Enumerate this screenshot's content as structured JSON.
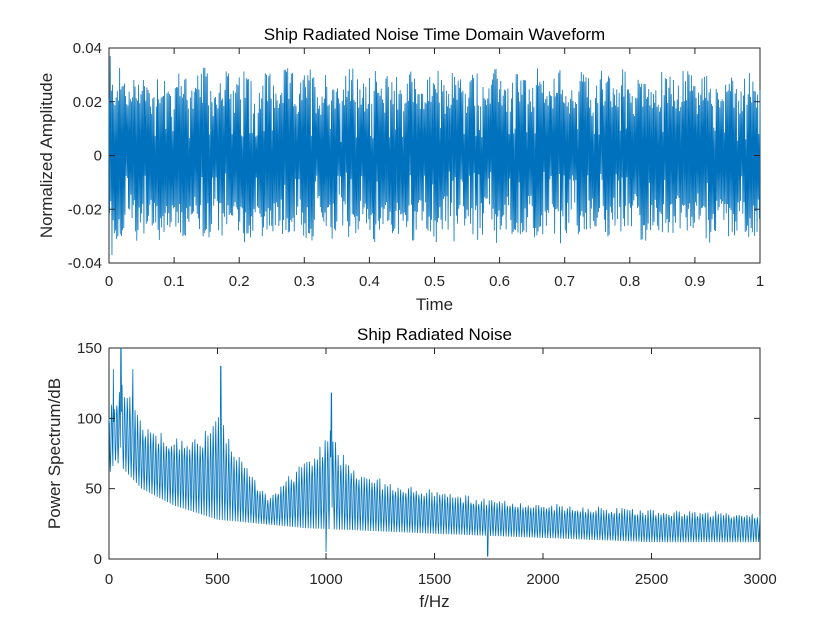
{
  "colors": {
    "line": "#0072BD",
    "axis": "#262626",
    "background": "#ffffff"
  },
  "chart_data": [
    {
      "type": "line",
      "title": "Ship Radiated Noise Time Domain Waveform",
      "xlabel": "Time",
      "ylabel": "Normalized Amplitude",
      "xlim": [
        0,
        1
      ],
      "ylim": [
        -0.04,
        0.04
      ],
      "xticks": [
        "0",
        "0.1",
        "0.2",
        "0.3",
        "0.4",
        "0.5",
        "0.6",
        "0.7",
        "0.8",
        "0.9",
        "1"
      ],
      "yticks": [
        "-0.04",
        "-0.02",
        "0",
        "0.02",
        "0.04"
      ],
      "signal": {
        "kind": "oscillation",
        "points": 1100,
        "envelope_peak": 0.033,
        "envelope_typical": 0.025,
        "max_value": 0.037,
        "min_value": -0.037
      }
    },
    {
      "type": "line",
      "title": "Ship Radiated Noise",
      "xlabel": "f/Hz",
      "ylabel": "Power Spectrum/dB",
      "xlim": [
        0,
        3000
      ],
      "ylim": [
        0,
        150
      ],
      "xticks": [
        "0",
        "500",
        "1000",
        "1500",
        "2000",
        "2500",
        "3000"
      ],
      "yticks": [
        "0",
        "50",
        "100",
        "150"
      ],
      "upper_envelope": [
        [
          0,
          110
        ],
        [
          30,
          115
        ],
        [
          60,
          125
        ],
        [
          90,
          120
        ],
        [
          150,
          98
        ],
        [
          200,
          92
        ],
        [
          300,
          87
        ],
        [
          400,
          87
        ],
        [
          480,
          95
        ],
        [
          510,
          110
        ],
        [
          540,
          90
        ],
        [
          600,
          73
        ],
        [
          650,
          62
        ],
        [
          700,
          50
        ],
        [
          740,
          43
        ],
        [
          800,
          55
        ],
        [
          900,
          70
        ],
        [
          980,
          82
        ],
        [
          1020,
          92
        ],
        [
          1060,
          78
        ],
        [
          1150,
          62
        ],
        [
          1300,
          55
        ],
        [
          1500,
          49
        ],
        [
          1800,
          42
        ],
        [
          2000,
          40
        ],
        [
          2200,
          38
        ],
        [
          2500,
          35
        ],
        [
          2800,
          34
        ],
        [
          3000,
          33
        ]
      ],
      "lower_envelope": [
        [
          0,
          60
        ],
        [
          30,
          70
        ],
        [
          60,
          65
        ],
        [
          150,
          50
        ],
        [
          300,
          38
        ],
        [
          500,
          28
        ],
        [
          700,
          25
        ],
        [
          900,
          22
        ],
        [
          1200,
          20
        ],
        [
          1500,
          18
        ],
        [
          2000,
          15
        ],
        [
          2500,
          12
        ],
        [
          3000,
          12
        ]
      ],
      "peaks": [
        {
          "f": 55,
          "db": 150
        },
        {
          "f": 20,
          "db": 135
        },
        {
          "f": 110,
          "db": 135
        },
        {
          "f": 515,
          "db": 137
        },
        {
          "f": 1025,
          "db": 118
        }
      ],
      "dips": [
        {
          "f": 1745,
          "db": 2
        },
        {
          "f": 1000,
          "db": 5
        }
      ]
    }
  ]
}
